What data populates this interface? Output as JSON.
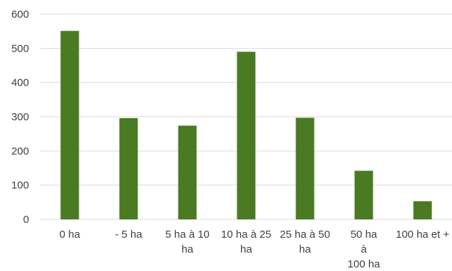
{
  "chart_data": {
    "type": "bar",
    "title": "",
    "xlabel": "",
    "ylabel": "",
    "categories": [
      [
        "0 ha"
      ],
      [
        "- 5 ha"
      ],
      [
        "5 ha à 10",
        "ha"
      ],
      [
        "10 ha à 25",
        "ha"
      ],
      [
        "25 ha à 50",
        "ha"
      ],
      [
        "50 ha",
        "à",
        "100 ha"
      ],
      [
        "100 ha et +"
      ]
    ],
    "values": [
      551,
      296,
      274,
      490,
      297,
      142,
      53
    ],
    "ylim": [
      0,
      600
    ],
    "yticks": [
      0,
      100,
      200,
      300,
      400,
      500,
      600
    ],
    "grid": true,
    "legend": "none",
    "colors": {
      "bar": "#4a7a22",
      "grid": "#d9d9d9",
      "text": "#404040"
    }
  }
}
